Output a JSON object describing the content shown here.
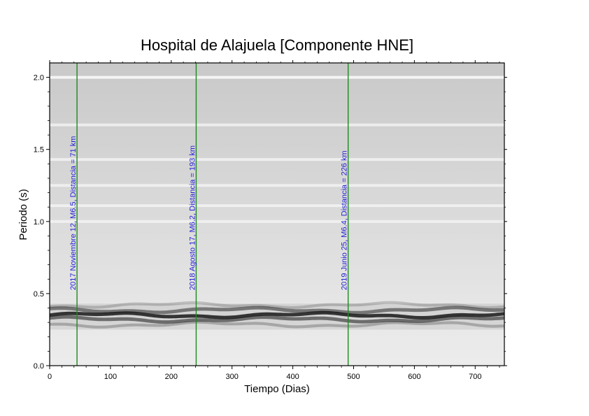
{
  "chart_data": {
    "type": "heatmap",
    "title": "Hospital de Alajuela [Componente HNE]",
    "xlabel": "Tiempo (Dias)",
    "ylabel": "Periodo (s)",
    "xlim": [
      0,
      748
    ],
    "ylim": [
      0,
      2.1
    ],
    "x_ticks": [
      "0",
      "100",
      "200",
      "300",
      "400",
      "500",
      "600",
      "700"
    ],
    "y_ticks": [
      "0.0",
      "0.5",
      "1.0",
      "1.5",
      "2.0"
    ],
    "grid": false,
    "dominant_period_band": {
      "center_s": 0.35,
      "min_s": 0.25,
      "max_s": 0.43
    },
    "light_horizontal_bands_s": [
      2.0,
      1.67,
      1.43,
      1.25,
      1.11,
      1.0
    ],
    "events": [
      {
        "day": 45,
        "label": "2017 Noviembre 12, M6.5, Distancia = 71 km"
      },
      {
        "day": 241,
        "label": "2018 Agosto 17, M6.2, Distancia = 193 km"
      },
      {
        "day": 491,
        "label": "2019 Junio 25, M6.4, Distancia = 226 km"
      }
    ],
    "colors": {
      "event_line": "#1b8a1b",
      "event_text": "#1f1fd6",
      "band": "#1a1a1a"
    }
  }
}
